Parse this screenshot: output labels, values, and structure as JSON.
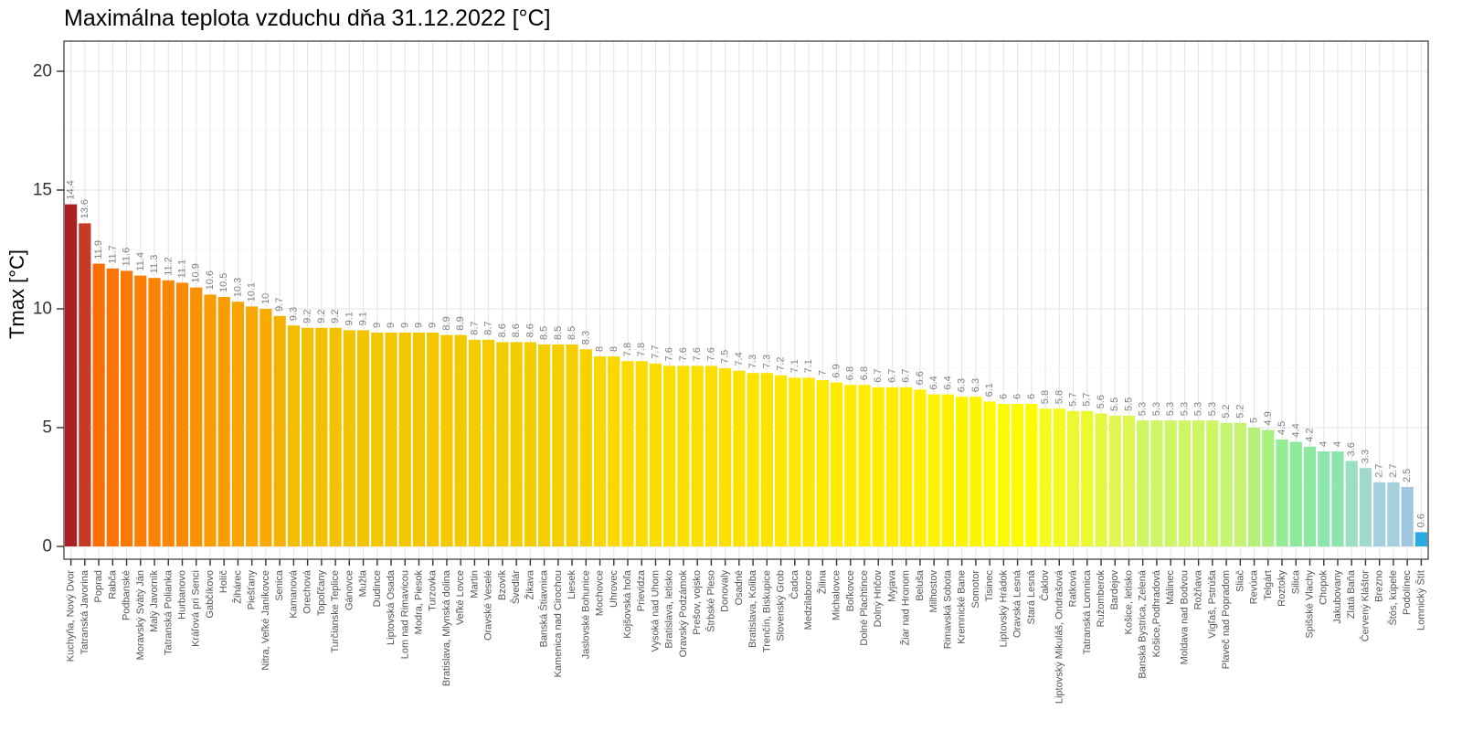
{
  "title": "Maximálna teplota vzduchu dňa 31.12.2022 [°C]",
  "chart_data": {
    "type": "bar",
    "title": "Maximálna teplota vzduchu dňa 31.12.2022 [°C]",
    "xlabel": "",
    "ylabel": "Tmax [°C]",
    "ylim": [
      0,
      20
    ],
    "y_major_ticks": [
      0,
      5,
      10,
      15,
      20
    ],
    "y_minor_ticks": [
      2.5,
      7.5,
      12.5,
      17.5
    ],
    "grid": true,
    "legend": "none",
    "bar_value_labels_shown": true,
    "value_label_color": "#808080",
    "x_label_color": "#555555",
    "axis_color": "#333333",
    "grid_major_color": "#e3e3e3",
    "grid_minor_color": "#f0f0f0",
    "categories": [
      "Kuchyňa, Nový Dvor",
      "Tatranská Javorina",
      "Poprad",
      "Rabča",
      "Podbanské",
      "Moravský Svätý Ján",
      "Malý Javorník",
      "Tatranská Polianka",
      "Hurbanovo",
      "Kráľová pri Senci",
      "Gabčíkovo",
      "Holíč",
      "Žihárec",
      "Piešťany",
      "Nitra, Veľké Janíkovce",
      "Senica",
      "Kamanová",
      "Orechová",
      "Topoľčany",
      "Turčianske Teplice",
      "Gánovce",
      "Mužla",
      "Dudince",
      "Liptovská Osada",
      "Lom nad Rimavicou",
      "Modra, Piesok",
      "Turzovka",
      "Bratislava, Mlynská dolina",
      "Veľké Lovce",
      "Martin",
      "Oravské Veselé",
      "Bzovík",
      "Švedlár",
      "Žikava",
      "Banská Štiavnica",
      "Kamenica nad Cirochou",
      "Liesek",
      "Jaslovské Bohunice",
      "Mochovce",
      "Uhrovec",
      "Kojšovská hoľa",
      "Prievidza",
      "Vysoká nad Uhom",
      "Bratislava, letisko",
      "Oravský Podzámok",
      "Prešov, vojsko",
      "Štrbské Pleso",
      "Donovaly",
      "Osadné",
      "Bratislava, Koliba",
      "Trenčín, Biskupice",
      "Slovenský Grob",
      "Čadca",
      "Medzilaborce",
      "Žilina",
      "Michalovce",
      "Boľkovce",
      "Dolné Plachtince",
      "Dolný Hričov",
      "Myjava",
      "Žiar nad Hronom",
      "Beluša",
      "Milhostov",
      "Rimavská Sobota",
      "Kremnické Bane",
      "Somotor",
      "Tisinec",
      "Liptovský Hrádok",
      "Oravská Lesná",
      "Stará Lesná",
      "Čaklov",
      "Liptovský Mikuláš, Ondrašová",
      "Ratková",
      "Tatranská Lomnica",
      "Ružomberok",
      "Bardejov",
      "Košice, letisko",
      "Banská Bystrica, Zelená",
      "Košice,Podhradová",
      "Málinec",
      "Moldava nad Bodvou",
      "Rožňava",
      "Vígľaš, Pstrúša",
      "Plaveč nad Popradom",
      "Sliač",
      "Revúca",
      "Telgárt",
      "Roztoky",
      "Silica",
      "Spišské Vlachy",
      "Chopok",
      "Jakubovany",
      "Zlatá Baňa",
      "Červený Kláštor",
      "Brezno",
      "Štós, kúpele",
      "Podolínec",
      "Lomnický Štít"
    ],
    "values": [
      14.4,
      13.6,
      11.9,
      11.7,
      11.6,
      11.4,
      11.3,
      11.2,
      11.1,
      10.9,
      10.6,
      10.5,
      10.3,
      10.1,
      10,
      9.7,
      9.3,
      9.2,
      9.2,
      9.2,
      9.1,
      9.1,
      9,
      9,
      9,
      9,
      9,
      8.9,
      8.9,
      8.7,
      8.7,
      8.6,
      8.6,
      8.6,
      8.5,
      8.5,
      8.5,
      8.3,
      8,
      8,
      7.8,
      7.8,
      7.7,
      7.6,
      7.6,
      7.6,
      7.6,
      7.5,
      7.4,
      7.3,
      7.3,
      7.2,
      7.1,
      7.1,
      7,
      6.9,
      6.8,
      6.8,
      6.7,
      6.7,
      6.7,
      6.6,
      6.4,
      6.4,
      6.3,
      6.3,
      6.1,
      6,
      6,
      6,
      5.8,
      5.8,
      5.7,
      5.7,
      5.6,
      5.5,
      5.5,
      5.3,
      5.3,
      5.3,
      5.3,
      5.3,
      5.3,
      5.2,
      5.2,
      5,
      4.9,
      4.5,
      4.4,
      4.2,
      4,
      4,
      3.6,
      3.3,
      2.7,
      2.7,
      2.5,
      0.6
    ],
    "color_stops": [
      [
        0.6,
        "#29abe2"
      ],
      [
        2.5,
        "#9fc8e0"
      ],
      [
        2.7,
        "#a5cfdd"
      ],
      [
        3.3,
        "#a0d8cb"
      ],
      [
        3.6,
        "#9cdfc0"
      ],
      [
        4.0,
        "#8de5ae"
      ],
      [
        4.4,
        "#8dea98"
      ],
      [
        4.9,
        "#a9f07e"
      ],
      [
        5.2,
        "#c6f46e"
      ],
      [
        5.5,
        "#dff751"
      ],
      [
        5.8,
        "#f2fa20"
      ],
      [
        6.0,
        "#fafc00"
      ],
      [
        6.5,
        "#fff000"
      ],
      [
        7.0,
        "#ffe900"
      ],
      [
        7.6,
        "#fbdf00"
      ],
      [
        8.0,
        "#f8d800"
      ],
      [
        8.5,
        "#f4cf00"
      ],
      [
        9.0,
        "#f3c700"
      ],
      [
        9.7,
        "#f6b200"
      ],
      [
        10.0,
        "#f8aa01"
      ],
      [
        10.5,
        "#f99e02"
      ],
      [
        11.1,
        "#fa8a04"
      ],
      [
        11.9,
        "#fb6d05"
      ],
      [
        13.6,
        "#c63b27"
      ],
      [
        14.4,
        "#ab2024"
      ]
    ]
  }
}
